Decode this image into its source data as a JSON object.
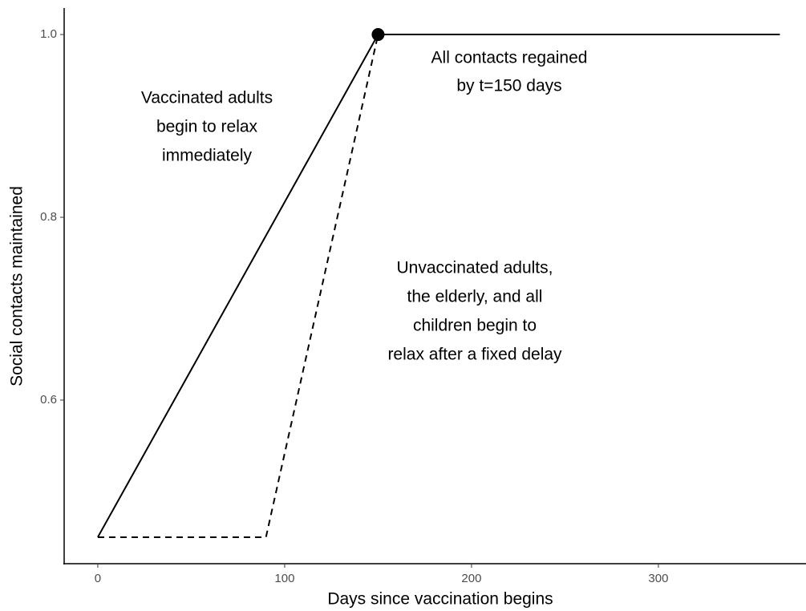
{
  "chart_data": {
    "type": "line",
    "x_label": "Days since vaccination begins",
    "y_label": "Social contacts maintained",
    "series": [
      {
        "color": "#000000",
        "dash": false,
        "x": [
          0,
          150,
          365
        ],
        "values": [
          0.45,
          1,
          1
        ]
      },
      {
        "color": "#000000",
        "dash": true,
        "x": [
          0,
          90,
          150
        ],
        "values": [
          0.45,
          0.45,
          1
        ]
      }
    ],
    "points": {
      "x": [
        150
      ],
      "values": [
        1
      ],
      "color": "#000000"
    },
    "annotations": [
      {
        "lines": [
          "Vaccinated adults",
          "begin to relax",
          "immediately"
        ]
      },
      {
        "lines": [
          "All contacts regained",
          "by t=150 days"
        ]
      },
      {
        "lines": [
          "Unvaccinated adults,",
          "the elderly, and all",
          "children begin to",
          "relax after a fixed delay"
        ]
      }
    ],
    "xlim": [
      -18,
      379
    ],
    "xticks": [
      0,
      100,
      200,
      300
    ],
    "ylim": [
      0.421,
      1.029
    ],
    "yticks": [
      {
        "value": 0.6,
        "label": "0.6"
      },
      {
        "value": 0.8,
        "label": "0.8"
      },
      {
        "value": 1,
        "label": "1.0"
      }
    ],
    "grid": false
  }
}
